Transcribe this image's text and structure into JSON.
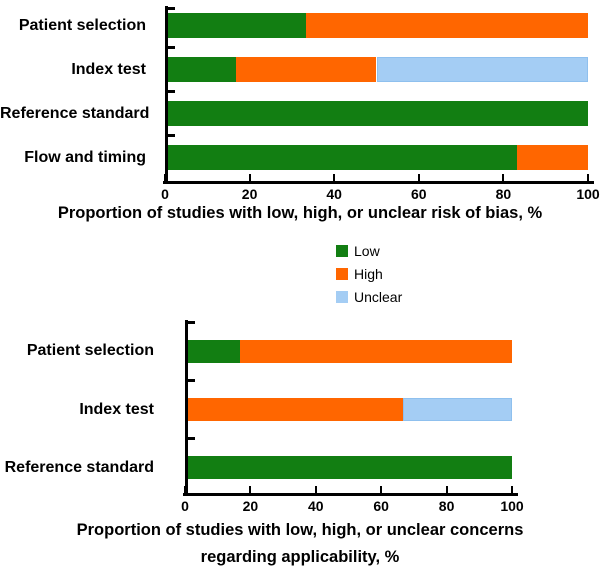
{
  "figure_name": "quadas2-summary-figure",
  "colors": {
    "low": "#127e12",
    "high": "#ff6600",
    "unclear": "#a4cdf4",
    "unclear_border": "#8fc0ee",
    "axis": "#000000",
    "background": "#ffffff"
  },
  "legend": {
    "items": [
      {
        "label": "Low",
        "color_key": "low"
      },
      {
        "label": "High",
        "color_key": "high"
      },
      {
        "label": "Unclear",
        "color_key": "unclear"
      }
    ]
  },
  "chart_data": {
    "type": "bar",
    "orientation": "horizontal",
    "stacked": true,
    "grid": false,
    "legend_position": "between-charts",
    "charts": [
      {
        "name": "risk-of-bias",
        "categories": [
          "Patient selection",
          "Index test",
          "Reference standard",
          "Flow and timing"
        ],
        "series": [
          {
            "name": "Low",
            "color_key": "low",
            "values": [
              33.3,
              16.7,
              100,
              83.3
            ]
          },
          {
            "name": "High",
            "color_key": "high",
            "values": [
              66.7,
              33.3,
              0,
              16.7
            ]
          },
          {
            "name": "Unclear",
            "color_key": "unclear",
            "values": [
              0,
              50,
              0,
              0
            ]
          }
        ],
        "x_ticks": [
          0,
          20,
          40,
          60,
          80,
          100
        ],
        "xlim": [
          0,
          100
        ],
        "xlabel": "Proportion of studies with low, high, or unclear risk of bias, %",
        "xlabel_lines": [
          "Proportion of studies with low, high, or unclear risk of bias, %"
        ]
      },
      {
        "name": "applicability-concerns",
        "categories": [
          "Patient selection",
          "Index test",
          "Reference standard"
        ],
        "series": [
          {
            "name": "Low",
            "color_key": "low",
            "values": [
              16.7,
              0,
              100
            ]
          },
          {
            "name": "High",
            "color_key": "high",
            "values": [
              83.3,
              66.7,
              0
            ]
          },
          {
            "name": "Unclear",
            "color_key": "unclear",
            "values": [
              0,
              33.3,
              0
            ]
          }
        ],
        "x_ticks": [
          0,
          20,
          40,
          60,
          80,
          100
        ],
        "xlim": [
          0,
          100
        ],
        "xlabel": "Proportion of studies with low, high, or unclear concerns regarding applicability, %",
        "xlabel_lines": [
          "Proportion of studies with low, high, or unclear concerns",
          "regarding applicability, %"
        ]
      }
    ]
  }
}
